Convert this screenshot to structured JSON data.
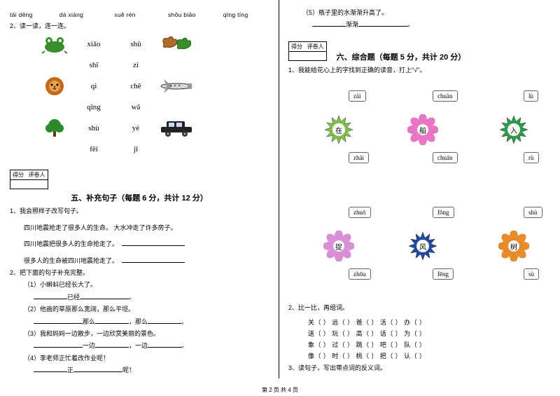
{
  "left": {
    "pinyin_row": [
      "tái dēng",
      "dà xiàng",
      "xuě rén",
      "shǒu biǎo",
      "qīng tíng"
    ],
    "q2_header": "2、读一读，连一连。",
    "lian": {
      "left_pinyin": [
        "xiǎo",
        "shī",
        "qì",
        "qīng",
        "shù",
        "fēi"
      ],
      "right_pinyin": [
        "shǔ",
        "zi",
        "chē",
        "wā",
        "yè",
        "jī"
      ]
    },
    "score_label_top": "得分",
    "score_label_bottom": "评卷人",
    "section5_title": "五、补充句子（每题 6 分，共计 12 分）",
    "q1_title": "1、我会照样子改写句子。",
    "q1_lines": [
      "四川地震抢走了很多人的生命。    大水冲走了许多房子。",
      "四川地震把很多人的生命抢走了。",
      "很多人的生命被四川地震抢走了。"
    ],
    "q2_title": "2、把下面的句子补充完整。",
    "q2_items": [
      "（1）小蝌蚪已经长大了。",
      "（2）他画的草原那么宽阔，那么平坦。",
      "（3）我和妈妈一边散步，一边欣赏美丽的景色。",
      "（4）李老师正忙着改作业呢！"
    ]
  },
  "right": {
    "q5_text": "（5）瓶子里的水渐渐升高了。",
    "q5_word": "渐渐",
    "score_label_top": "得分",
    "score_label_bottom": "评卷人",
    "section6_title": "六、综合题（每题 5 分，共计 20 分）",
    "q1_title": "1、我能给花心上的字找到正确的读音，打上\"√\"。",
    "flowers_top": [
      {
        "char": "在",
        "color": "#7fc24b",
        "opts": [
          "zài",
          "zhài"
        ],
        "ox": 50,
        "oy": 50
      },
      {
        "char": "船",
        "color": "#e976c5",
        "opts": [
          "chuàn",
          "chuán"
        ],
        "ox": 170,
        "oy": 50
      },
      {
        "char": "入",
        "color": "#2c9b4a",
        "opts": [
          "lù",
          "rù"
        ],
        "ox": 300,
        "oy": 50
      }
    ],
    "flowers_bottom": [
      {
        "char": "捉",
        "color": "#d98fd3",
        "opts": [
          "zhuō",
          "zhōu"
        ],
        "ox": 50,
        "oy": 50
      },
      {
        "char": "风",
        "color": "#1f4aa0",
        "opts": [
          "fōng",
          "fēng"
        ],
        "ox": 170,
        "oy": 50
      },
      {
        "char": "树",
        "color": "#e88b2c",
        "opts": [
          "shù",
          "sù"
        ],
        "ox": 300,
        "oy": 50
      }
    ],
    "q2_title": "2、比一比，再组词。",
    "q2_rows": [
      [
        "关",
        "远",
        "爸",
        "活",
        "办"
      ],
      [
        "送",
        "玩",
        "高",
        "话",
        "为"
      ],
      [
        "象",
        "过",
        "跳",
        "吧",
        "队"
      ],
      [
        "像",
        "时",
        "桃",
        "把",
        "认"
      ]
    ],
    "q3_title": "3、读句子，写出带点词的反义词。"
  },
  "footer": "第 2 页  共 4 页"
}
